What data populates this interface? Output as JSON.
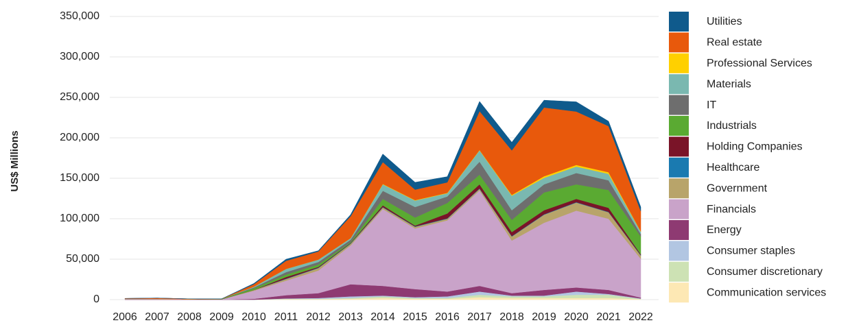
{
  "chart_data": {
    "type": "area",
    "stacked": true,
    "y_label": "US$ Millions",
    "categories": [
      "2006",
      "2007",
      "2008",
      "2009",
      "2010",
      "2011",
      "2012",
      "2013",
      "2014",
      "2015",
      "2016",
      "2017",
      "2018",
      "2019",
      "2020",
      "2021",
      "2022"
    ],
    "ylim": [
      0,
      350000
    ],
    "yticks": [
      0,
      {
        "value": 50000,
        "label": "50,000"
      },
      {
        "value": 100000,
        "label": "100,000"
      },
      {
        "value": 150000,
        "label": "150,000"
      },
      {
        "value": 200000,
        "label": "200,000"
      },
      {
        "value": 250000,
        "label": "250,000"
      },
      {
        "value": 300000,
        "label": "300,000"
      },
      {
        "value": 350000,
        "label": "350,000"
      }
    ],
    "grid": true,
    "legend": "right",
    "series": [
      {
        "name": "Communication services",
        "color": "#fde8b4",
        "values": [
          0,
          0,
          0,
          0,
          0,
          500,
          500,
          1000,
          2000,
          1000,
          1000,
          3000,
          2000,
          2000,
          2000,
          2000,
          500
        ]
      },
      {
        "name": "Consumer discretionary",
        "color": "#cde2b4",
        "values": [
          0,
          0,
          0,
          0,
          0,
          500,
          500,
          1000,
          2000,
          1000,
          1000,
          3000,
          2000,
          2000,
          4000,
          4000,
          500
        ]
      },
      {
        "name": "Consumer staples",
        "color": "#b2c6e2",
        "values": [
          0,
          0,
          0,
          0,
          0,
          500,
          1000,
          2000,
          1000,
          1000,
          2000,
          4000,
          1000,
          1000,
          4000,
          1000,
          500
        ]
      },
      {
        "name": "Energy",
        "color": "#8e3a72",
        "values": [
          0,
          0,
          0,
          0,
          1000,
          4000,
          6000,
          15000,
          12000,
          10000,
          6000,
          7000,
          3000,
          7000,
          5000,
          5000,
          1000
        ]
      },
      {
        "name": "Financials",
        "color": "#c9a3c9",
        "values": [
          1000,
          1000,
          500,
          500,
          10000,
          18000,
          28000,
          48000,
          95000,
          75000,
          88000,
          118000,
          65000,
          83000,
          95000,
          88000,
          48000
        ]
      },
      {
        "name": "Government",
        "color": "#b8a46a",
        "values": [
          0,
          0,
          0,
          0,
          1000,
          2000,
          3000,
          2000,
          2000,
          2000,
          2000,
          2000,
          5000,
          10000,
          10000,
          8000,
          4000
        ]
      },
      {
        "name": "Healthcare",
        "color": "#1a7ab0",
        "values": [
          0,
          0,
          0,
          0,
          0,
          500,
          500,
          500,
          500,
          500,
          500,
          500,
          500,
          500,
          500,
          500,
          500
        ]
      },
      {
        "name": "Holding Companies",
        "color": "#7a1428",
        "values": [
          0,
          0,
          0,
          0,
          0,
          2000,
          1000,
          500,
          2000,
          1000,
          6000,
          5000,
          5000,
          5000,
          4000,
          5000,
          1000
        ]
      },
      {
        "name": "Industrials",
        "color": "#5aaa32",
        "values": [
          0,
          0,
          0,
          500,
          2000,
          3000,
          3000,
          1000,
          8000,
          10000,
          13000,
          12000,
          15000,
          22000,
          18000,
          22000,
          22000
        ]
      },
      {
        "name": "IT",
        "color": "#6e6e6e",
        "values": [
          0,
          0,
          0,
          0,
          1000,
          3000,
          3000,
          3000,
          10000,
          13000,
          8000,
          16000,
          12000,
          10000,
          14000,
          12000,
          3000
        ]
      },
      {
        "name": "Materials",
        "color": "#7ab8b0",
        "values": [
          0,
          0,
          0,
          0,
          1000,
          4000,
          3000,
          2000,
          8000,
          8000,
          4000,
          14000,
          18000,
          8000,
          8000,
          8000,
          3000
        ]
      },
      {
        "name": "Professional Services",
        "color": "#ffd000",
        "values": [
          0,
          0,
          0,
          0,
          0,
          0,
          0,
          0,
          500,
          500,
          500,
          500,
          1000,
          2000,
          2000,
          2000,
          500
        ]
      },
      {
        "name": "Real estate",
        "color": "#e8590c",
        "values": [
          500,
          1000,
          500,
          0,
          3000,
          10000,
          10000,
          27000,
          27000,
          13000,
          13000,
          48000,
          55000,
          85000,
          66000,
          57000,
          25000
        ]
      },
      {
        "name": "Utilities",
        "color": "#0f5a8c",
        "values": [
          0,
          0,
          0,
          0,
          1000,
          2000,
          1000,
          2000,
          10000,
          9000,
          7000,
          12000,
          10000,
          9000,
          12000,
          6000,
          5000
        ]
      }
    ]
  }
}
